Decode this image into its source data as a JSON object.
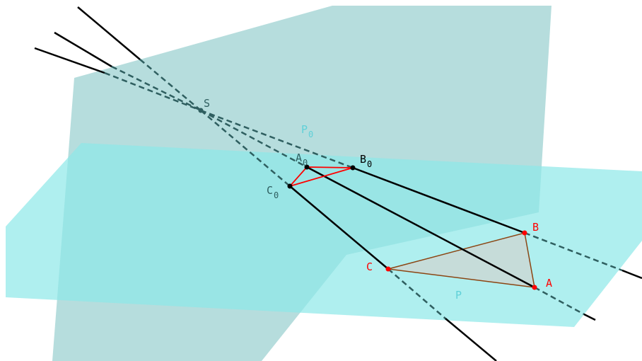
{
  "colors": {
    "plane_p0": "#a9d7d7",
    "plane_p": "#98e9e9",
    "dark_line": "#000000",
    "dashed_line": "#2f5f60",
    "red": "#ff0000",
    "brown": "#8b4513",
    "black_point": "#000000",
    "plane_label": "#5fd0d8",
    "triangle_fill": "#c6dcd9"
  },
  "labels": {
    "S": "S",
    "P0_main": "P",
    "P0_sub": "0",
    "P": "P",
    "A0_main": "A",
    "A0_sub": "0",
    "B0_main": "B",
    "B0_sub": "0",
    "C0_main": "C",
    "C0_sub": "0",
    "A": "A",
    "B": "B",
    "C": "C"
  }
}
